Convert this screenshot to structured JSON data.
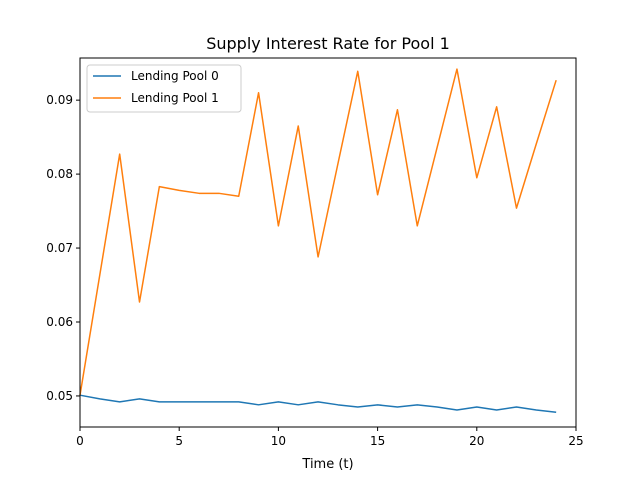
{
  "chart_data": {
    "type": "line",
    "title": "Supply Interest Rate for Pool 1",
    "xlabel": "Time (t)",
    "ylabel": "",
    "xlim": [
      0,
      25
    ],
    "ylim": [
      0.0458,
      0.0957
    ],
    "xticks": [
      0,
      5,
      10,
      15,
      20,
      25
    ],
    "xtick_labels": [
      "0",
      "5",
      "10",
      "15",
      "20",
      "25"
    ],
    "yticks": [
      0.05,
      0.06,
      0.07,
      0.08,
      0.09
    ],
    "ytick_labels": [
      "0.05",
      "0.06",
      "0.07",
      "0.08",
      "0.09"
    ],
    "grid": false,
    "legend_position": "top-left",
    "x": [
      0,
      1,
      2,
      3,
      4,
      5,
      6,
      7,
      8,
      9,
      10,
      11,
      12,
      13,
      14,
      15,
      16,
      17,
      18,
      19,
      20,
      21,
      22,
      23,
      24
    ],
    "series": [
      {
        "name": "Lending Pool 0",
        "color": "#1f77b4",
        "values": [
          0.0501,
          0.0496,
          0.0492,
          0.0496,
          0.0492,
          0.0492,
          0.0492,
          0.0492,
          0.0492,
          0.0488,
          0.0492,
          0.0488,
          0.0492,
          0.0488,
          0.0485,
          0.0488,
          0.0485,
          0.0488,
          0.0485,
          0.0481,
          0.0485,
          0.0481,
          0.0485,
          0.0481,
          0.0478
        ]
      },
      {
        "name": "Lending Pool 1",
        "color": "#ff7f0e",
        "values": [
          0.0501,
          0.0664,
          0.0827,
          0.0627,
          0.0783,
          0.0778,
          0.0774,
          0.0774,
          0.077,
          0.091,
          0.073,
          0.0865,
          0.0688,
          0.0814,
          0.0939,
          0.0772,
          0.0887,
          0.073,
          0.0836,
          0.0942,
          0.0795,
          0.0891,
          0.0754,
          0.0841,
          0.0927
        ]
      }
    ]
  }
}
